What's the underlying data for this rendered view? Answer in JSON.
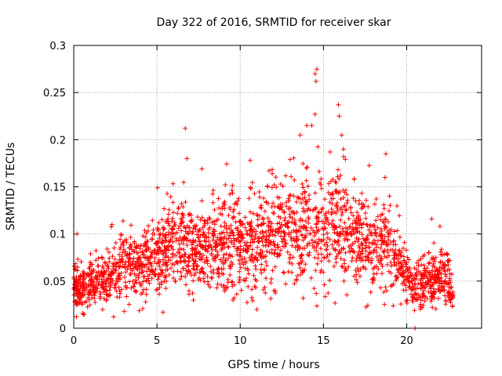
{
  "chart_data": {
    "type": "scatter",
    "title": "Day 322 of 2016, SRMTID for receiver skar",
    "xlabel": "GPS time / hours",
    "ylabel": "SRMTID / TECUs",
    "xlim": [
      0,
      24.5
    ],
    "ylim": [
      0,
      0.3
    ],
    "xticks": [
      0,
      5,
      10,
      15,
      20
    ],
    "yticks": [
      0,
      0.05,
      0.1,
      0.15,
      0.2,
      0.25,
      0.3
    ],
    "xtick_labels": [
      "0",
      "5",
      "10",
      "15",
      "20"
    ],
    "ytick_labels": [
      "0",
      "0.05",
      "0.1",
      "0.15",
      "0.2",
      "0.25",
      "0.3"
    ],
    "grid": true,
    "marker": "+",
    "color": "#ff0000",
    "series": [
      {
        "name": "SRMTID",
        "envelope": [
          {
            "x": 0.0,
            "y": 0.045
          },
          {
            "x": 0.5,
            "y": 0.04
          },
          {
            "x": 1.0,
            "y": 0.045
          },
          {
            "x": 1.5,
            "y": 0.05
          },
          {
            "x": 2.0,
            "y": 0.05
          },
          {
            "x": 2.5,
            "y": 0.06
          },
          {
            "x": 3.0,
            "y": 0.07
          },
          {
            "x": 3.5,
            "y": 0.065
          },
          {
            "x": 4.0,
            "y": 0.07
          },
          {
            "x": 4.5,
            "y": 0.07
          },
          {
            "x": 5.0,
            "y": 0.075
          },
          {
            "x": 5.5,
            "y": 0.08
          },
          {
            "x": 6.0,
            "y": 0.085
          },
          {
            "x": 6.5,
            "y": 0.09
          },
          {
            "x": 7.0,
            "y": 0.08
          },
          {
            "x": 7.5,
            "y": 0.085
          },
          {
            "x": 8.0,
            "y": 0.08
          },
          {
            "x": 8.5,
            "y": 0.085
          },
          {
            "x": 9.0,
            "y": 0.09
          },
          {
            "x": 9.5,
            "y": 0.09
          },
          {
            "x": 10.0,
            "y": 0.09
          },
          {
            "x": 10.5,
            "y": 0.085
          },
          {
            "x": 11.0,
            "y": 0.09
          },
          {
            "x": 11.5,
            "y": 0.095
          },
          {
            "x": 12.0,
            "y": 0.095
          },
          {
            "x": 12.5,
            "y": 0.1
          },
          {
            "x": 13.0,
            "y": 0.1
          },
          {
            "x": 13.5,
            "y": 0.095
          },
          {
            "x": 14.0,
            "y": 0.1
          },
          {
            "x": 14.5,
            "y": 0.11
          },
          {
            "x": 15.0,
            "y": 0.1
          },
          {
            "x": 15.5,
            "y": 0.11
          },
          {
            "x": 16.0,
            "y": 0.11
          },
          {
            "x": 16.5,
            "y": 0.1
          },
          {
            "x": 17.0,
            "y": 0.095
          },
          {
            "x": 17.5,
            "y": 0.09
          },
          {
            "x": 18.0,
            "y": 0.085
          },
          {
            "x": 18.5,
            "y": 0.09
          },
          {
            "x": 19.0,
            "y": 0.085
          },
          {
            "x": 19.5,
            "y": 0.065
          },
          {
            "x": 20.0,
            "y": 0.055
          },
          {
            "x": 20.5,
            "y": 0.045
          },
          {
            "x": 21.0,
            "y": 0.045
          },
          {
            "x": 21.5,
            "y": 0.05
          },
          {
            "x": 22.0,
            "y": 0.055
          },
          {
            "x": 22.5,
            "y": 0.05
          },
          {
            "x": 22.8,
            "y": 0.03
          }
        ],
        "peaks": [
          {
            "x": 0.2,
            "y": 0.1
          },
          {
            "x": 2.3,
            "y": 0.11
          },
          {
            "x": 6.7,
            "y": 0.212
          },
          {
            "x": 6.8,
            "y": 0.18
          },
          {
            "x": 7.7,
            "y": 0.169
          },
          {
            "x": 10.6,
            "y": 0.178
          },
          {
            "x": 10.65,
            "y": 0.148
          },
          {
            "x": 13.0,
            "y": 0.179
          },
          {
            "x": 13.6,
            "y": 0.205
          },
          {
            "x": 14.0,
            "y": 0.215
          },
          {
            "x": 14.3,
            "y": 0.215
          },
          {
            "x": 14.5,
            "y": 0.27
          },
          {
            "x": 14.55,
            "y": 0.262
          },
          {
            "x": 14.5,
            "y": 0.227
          },
          {
            "x": 15.4,
            "y": 0.187
          },
          {
            "x": 15.9,
            "y": 0.237
          },
          {
            "x": 15.95,
            "y": 0.225
          },
          {
            "x": 16.1,
            "y": 0.205
          },
          {
            "x": 16.2,
            "y": 0.19
          },
          {
            "x": 18.7,
            "y": 0.16
          },
          {
            "x": 18.75,
            "y": 0.185
          },
          {
            "x": 21.5,
            "y": 0.116
          },
          {
            "x": 22.0,
            "y": 0.108
          },
          {
            "x": 2.4,
            "y": 0.012
          },
          {
            "x": 20.5,
            "y": 0.0
          }
        ]
      }
    ]
  }
}
